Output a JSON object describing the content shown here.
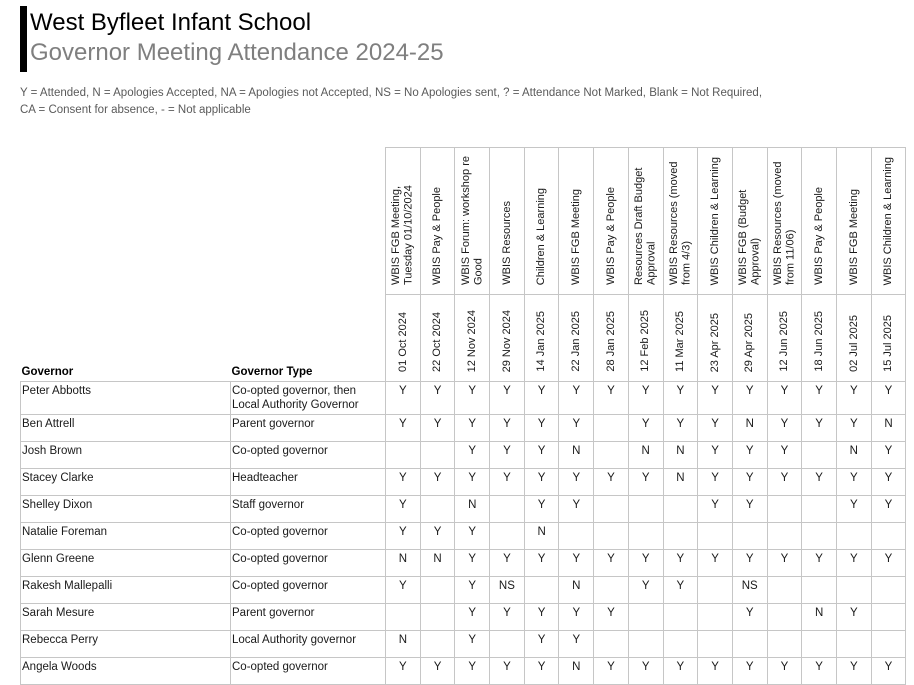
{
  "colors": {
    "title": "#000000",
    "subtitle": "#7f7f7f",
    "legend": "#5a5a5a",
    "grid": "#c6c6c6",
    "text": "#1a1a1a"
  },
  "header": {
    "title": "West Byfleet Infant School",
    "subtitle": "Governor Meeting Attendance 2024-25",
    "legend_line1": "Y = Attended, N = Apologies Accepted, NA = Apologies not Accepted, NS = No Apologies sent, ? = Attendance Not Marked, Blank = Not Required,",
    "legend_line2": "CA = Consent for absence, - = Not applicable"
  },
  "table": {
    "governor_header": "Governor",
    "type_header": "Governor Type",
    "meetings": [
      {
        "name": "WBIS FGB Meeting, Tuesday 01/10/2024",
        "date": "01 Oct 2024"
      },
      {
        "name": "WBIS Pay & People",
        "date": "22 Oct 2024"
      },
      {
        "name": "WBIS Forum: workshop re Good",
        "date": "12 Nov 2024"
      },
      {
        "name": "WBIS Resources",
        "date": "29 Nov 2024"
      },
      {
        "name": "Children & Learning",
        "date": "14 Jan 2025"
      },
      {
        "name": "WBIS FGB Meeting",
        "date": "22 Jan 2025"
      },
      {
        "name": "WBIS Pay & People",
        "date": "28 Jan 2025"
      },
      {
        "name": "Resources Draft Budget Approval",
        "date": "12 Feb 2025"
      },
      {
        "name": "WBIS Resources (moved from 4/3)",
        "date": "11 Mar 2025"
      },
      {
        "name": "WBIS Children & Learning",
        "date": "23 Apr 2025"
      },
      {
        "name": "WBIS FGB (Budget Approval)",
        "date": "29 Apr 2025"
      },
      {
        "name": "WBIS Resources (moved from 11/06)",
        "date": "12 Jun 2025"
      },
      {
        "name": "WBIS Pay & People",
        "date": "18 Jun 2025"
      },
      {
        "name": "WBIS FGB Meeting",
        "date": "02 Jul 2025"
      },
      {
        "name": "WBIS Children & Learning",
        "date": "15 Jul 2025"
      }
    ],
    "rows": [
      {
        "governor": "Peter Abbotts",
        "type": "Co-opted governor, then Local Authority Governor",
        "attendance": [
          "Y",
          "Y",
          "Y",
          "Y",
          "Y",
          "Y",
          "Y",
          "Y",
          "Y",
          "Y",
          "Y",
          "Y",
          "Y",
          "Y",
          "Y"
        ]
      },
      {
        "governor": "Ben Attrell",
        "type": "Parent governor",
        "attendance": [
          "Y",
          "Y",
          "Y",
          "Y",
          "Y",
          "Y",
          "",
          "Y",
          "Y",
          "Y",
          "N",
          "Y",
          "Y",
          "Y",
          "N"
        ]
      },
      {
        "governor": "Josh Brown",
        "type": "Co-opted governor",
        "attendance": [
          "",
          "",
          "Y",
          "Y",
          "Y",
          "N",
          "",
          "N",
          "N",
          "Y",
          "Y",
          "Y",
          "",
          "N",
          "Y"
        ]
      },
      {
        "governor": "Stacey Clarke",
        "type": "Headteacher",
        "attendance": [
          "Y",
          "Y",
          "Y",
          "Y",
          "Y",
          "Y",
          "Y",
          "Y",
          "N",
          "Y",
          "Y",
          "Y",
          "Y",
          "Y",
          "Y"
        ]
      },
      {
        "governor": "Shelley Dixon",
        "type": "Staff governor",
        "attendance": [
          "Y",
          "",
          "N",
          "",
          "Y",
          "Y",
          "",
          "",
          "",
          "Y",
          "Y",
          "",
          "",
          "Y",
          "Y"
        ]
      },
      {
        "governor": "Natalie Foreman",
        "type": "Co-opted governor",
        "attendance": [
          "Y",
          "Y",
          "Y",
          "",
          "N",
          "",
          "",
          "",
          "",
          "",
          "",
          "",
          "",
          "",
          ""
        ]
      },
      {
        "governor": "Glenn Greene",
        "type": "Co-opted governor",
        "attendance": [
          "N",
          "N",
          "Y",
          "Y",
          "Y",
          "Y",
          "Y",
          "Y",
          "Y",
          "Y",
          "Y",
          "Y",
          "Y",
          "Y",
          "Y"
        ]
      },
      {
        "governor": "Rakesh Mallepalli",
        "type": "Co-opted governor",
        "attendance": [
          "Y",
          "",
          "Y",
          "NS",
          "",
          "N",
          "",
          "Y",
          "Y",
          "",
          "NS",
          "",
          "",
          "",
          ""
        ]
      },
      {
        "governor": "Sarah Mesure",
        "type": "Parent governor",
        "attendance": [
          "",
          "",
          "Y",
          "Y",
          "Y",
          "Y",
          "Y",
          "",
          "",
          "",
          "Y",
          "",
          "N",
          "Y",
          ""
        ]
      },
      {
        "governor": "Rebecca Perry",
        "type": "Local Authority governor",
        "attendance": [
          "N",
          "",
          "Y",
          "",
          "Y",
          "Y",
          "",
          "",
          "",
          "",
          "",
          "",
          "",
          "",
          ""
        ]
      },
      {
        "governor": "Angela Woods",
        "type": "Co-opted governor",
        "attendance": [
          "Y",
          "Y",
          "Y",
          "Y",
          "Y",
          "N",
          "Y",
          "Y",
          "Y",
          "Y",
          "Y",
          "Y",
          "Y",
          "Y",
          "Y"
        ]
      }
    ]
  }
}
